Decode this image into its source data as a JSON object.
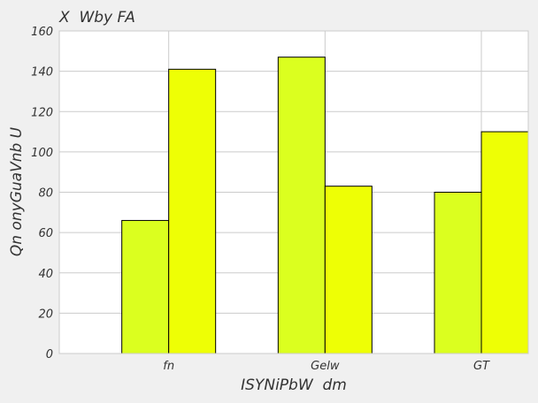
{
  "chart_data": {
    "type": "bar",
    "title": "X  Wby FA",
    "xlabel": "ISYNiPbW  dm",
    "ylabel": "Qn onyGuaVnb U",
    "categories": [
      "fn",
      "Gelw",
      "GT"
    ],
    "series": [
      {
        "values": [
          66,
          147,
          80
        ],
        "color": "#dbff1f"
      },
      {
        "values": [
          141,
          83,
          110
        ],
        "color": "#eeff05"
      }
    ],
    "ylim": [
      0,
      160
    ],
    "yticks": [
      0,
      20,
      40,
      60,
      80,
      100,
      120,
      140,
      160
    ],
    "grid": true,
    "plot_background": "#ffffff",
    "figure_background": "#f0f0f0",
    "grid_color": "#cbcbcb",
    "bar_edge_color": "#000000"
  }
}
